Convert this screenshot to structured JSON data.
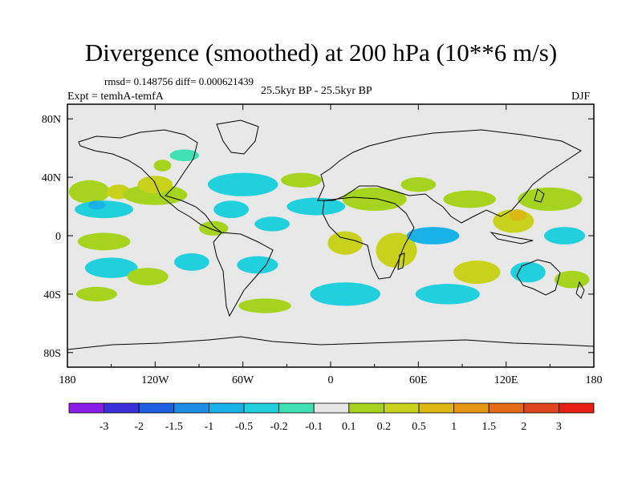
{
  "header": {
    "title": "Divergence (smoothed) at 200 hPa (10**6 m/s)",
    "rmsd_line": "rmsd= 0.148756 diff= 0.000621439",
    "experiment": "Expt = temhA-temfA",
    "period": "25.5kyr BP - 25.5kyr BP",
    "season": "DJF"
  },
  "chart_data": {
    "type": "heatmap",
    "title": "Divergence (smoothed) at 200 hPa (10**6 m/s)",
    "projection": "cylindrical-equidistant",
    "xlim": [
      -180,
      180
    ],
    "ylim": [
      -90,
      90
    ],
    "x_ticks": [
      {
        "value": -180,
        "label": "180"
      },
      {
        "value": -120,
        "label": "120W"
      },
      {
        "value": -60,
        "label": "60W"
      },
      {
        "value": 0,
        "label": "0"
      },
      {
        "value": 60,
        "label": "60E"
      },
      {
        "value": 120,
        "label": "120E"
      },
      {
        "value": 180,
        "label": "180"
      }
    ],
    "y_ticks": [
      {
        "value": 80,
        "label": "80N"
      },
      {
        "value": 40,
        "label": "40N"
      },
      {
        "value": 0,
        "label": "0"
      },
      {
        "value": -40,
        "label": "40S"
      },
      {
        "value": -80,
        "label": "80S"
      }
    ],
    "colorbar": {
      "colors": [
        "#8b1ee6",
        "#3b2fd9",
        "#1b5ee0",
        "#1d8fe6",
        "#19b2e6",
        "#20d0dc",
        "#3ee0b4",
        "#e6e6e6",
        "#a6d41e",
        "#c8d21a",
        "#dcb814",
        "#e69614",
        "#e66a14",
        "#e0461e",
        "#e61e14"
      ],
      "labels": [
        "-3",
        "-2",
        "-1.5",
        "-1",
        "-0.5",
        "-0.2",
        "-0.1",
        "0.1",
        "0.2",
        "0.5",
        "1",
        "1.5",
        "2",
        "3"
      ]
    },
    "field_blobs": [
      {
        "lon": -165,
        "lat": 30,
        "rlon": 14,
        "rlat": 8,
        "v": 0.2
      },
      {
        "lon": -155,
        "lat": 18,
        "rlon": 20,
        "rlat": 6,
        "v": -0.2
      },
      {
        "lon": -160,
        "lat": 21,
        "rlon": 6,
        "rlat": 3,
        "v": -0.5
      },
      {
        "lon": -145,
        "lat": 30,
        "rlon": 8,
        "rlat": 5,
        "v": 0.5
      },
      {
        "lon": -120,
        "lat": 28,
        "rlon": 22,
        "rlat": 7,
        "v": 0.2
      },
      {
        "lon": -155,
        "lat": -4,
        "rlon": 18,
        "rlat": 6,
        "v": 0.2
      },
      {
        "lon": -150,
        "lat": -22,
        "rlon": 18,
        "rlat": 7,
        "v": -0.2
      },
      {
        "lon": -125,
        "lat": -28,
        "rlon": 14,
        "rlat": 6,
        "v": 0.2
      },
      {
        "lon": -95,
        "lat": -18,
        "rlon": 12,
        "rlat": 6,
        "v": -0.2
      },
      {
        "lon": -120,
        "lat": 35,
        "rlon": 12,
        "rlat": 6,
        "v": 0.5
      },
      {
        "lon": -68,
        "lat": 18,
        "rlon": 12,
        "rlat": 6,
        "v": -0.2
      },
      {
        "lon": -60,
        "lat": 35,
        "rlon": 24,
        "rlat": 8,
        "v": -0.2
      },
      {
        "lon": -115,
        "lat": 48,
        "rlon": 6,
        "rlat": 4,
        "v": 0.2
      },
      {
        "lon": -80,
        "lat": 5,
        "rlon": 10,
        "rlat": 5,
        "v": 0.2
      },
      {
        "lon": -40,
        "lat": 8,
        "rlon": 12,
        "rlat": 5,
        "v": -0.2
      },
      {
        "lon": -50,
        "lat": -20,
        "rlon": 14,
        "rlat": 6,
        "v": -0.2
      },
      {
        "lon": -45,
        "lat": -48,
        "rlon": 18,
        "rlat": 5,
        "v": 0.2
      },
      {
        "lon": -20,
        "lat": 38,
        "rlon": 14,
        "rlat": 5,
        "v": 0.2
      },
      {
        "lon": -10,
        "lat": 20,
        "rlon": 20,
        "rlat": 6,
        "v": -0.2
      },
      {
        "lon": 10,
        "lat": -5,
        "rlon": 12,
        "rlat": 8,
        "v": 0.5
      },
      {
        "lon": 30,
        "lat": 25,
        "rlon": 22,
        "rlat": 8,
        "v": 0.2
      },
      {
        "lon": 45,
        "lat": -10,
        "rlon": 14,
        "rlat": 12,
        "v": 0.5
      },
      {
        "lon": 10,
        "lat": -40,
        "rlon": 24,
        "rlat": 8,
        "v": -0.2
      },
      {
        "lon": 70,
        "lat": 0,
        "rlon": 18,
        "rlat": 6,
        "v": -0.5
      },
      {
        "lon": 95,
        "lat": 25,
        "rlon": 18,
        "rlat": 6,
        "v": 0.2
      },
      {
        "lon": 100,
        "lat": -25,
        "rlon": 16,
        "rlat": 8,
        "v": 0.5
      },
      {
        "lon": 125,
        "lat": 10,
        "rlon": 14,
        "rlat": 8,
        "v": 0.5
      },
      {
        "lon": 128,
        "lat": 14,
        "rlon": 6,
        "rlat": 4,
        "v": 1
      },
      {
        "lon": 135,
        "lat": -25,
        "rlon": 12,
        "rlat": 7,
        "v": -0.2
      },
      {
        "lon": 150,
        "lat": 25,
        "rlon": 22,
        "rlat": 8,
        "v": 0.2
      },
      {
        "lon": 160,
        "lat": 0,
        "rlon": 14,
        "rlat": 6,
        "v": -0.2
      },
      {
        "lon": 165,
        "lat": -30,
        "rlon": 12,
        "rlat": 6,
        "v": 0.2
      },
      {
        "lon": -100,
        "lat": 55,
        "rlon": 10,
        "rlat": 4,
        "v": -0.1
      },
      {
        "lon": 60,
        "lat": 35,
        "rlon": 12,
        "rlat": 5,
        "v": 0.2
      },
      {
        "lon": 80,
        "lat": -40,
        "rlon": 22,
        "rlat": 7,
        "v": -0.2
      },
      {
        "lon": -160,
        "lat": -40,
        "rlon": 14,
        "rlat": 5,
        "v": 0.2
      }
    ]
  }
}
